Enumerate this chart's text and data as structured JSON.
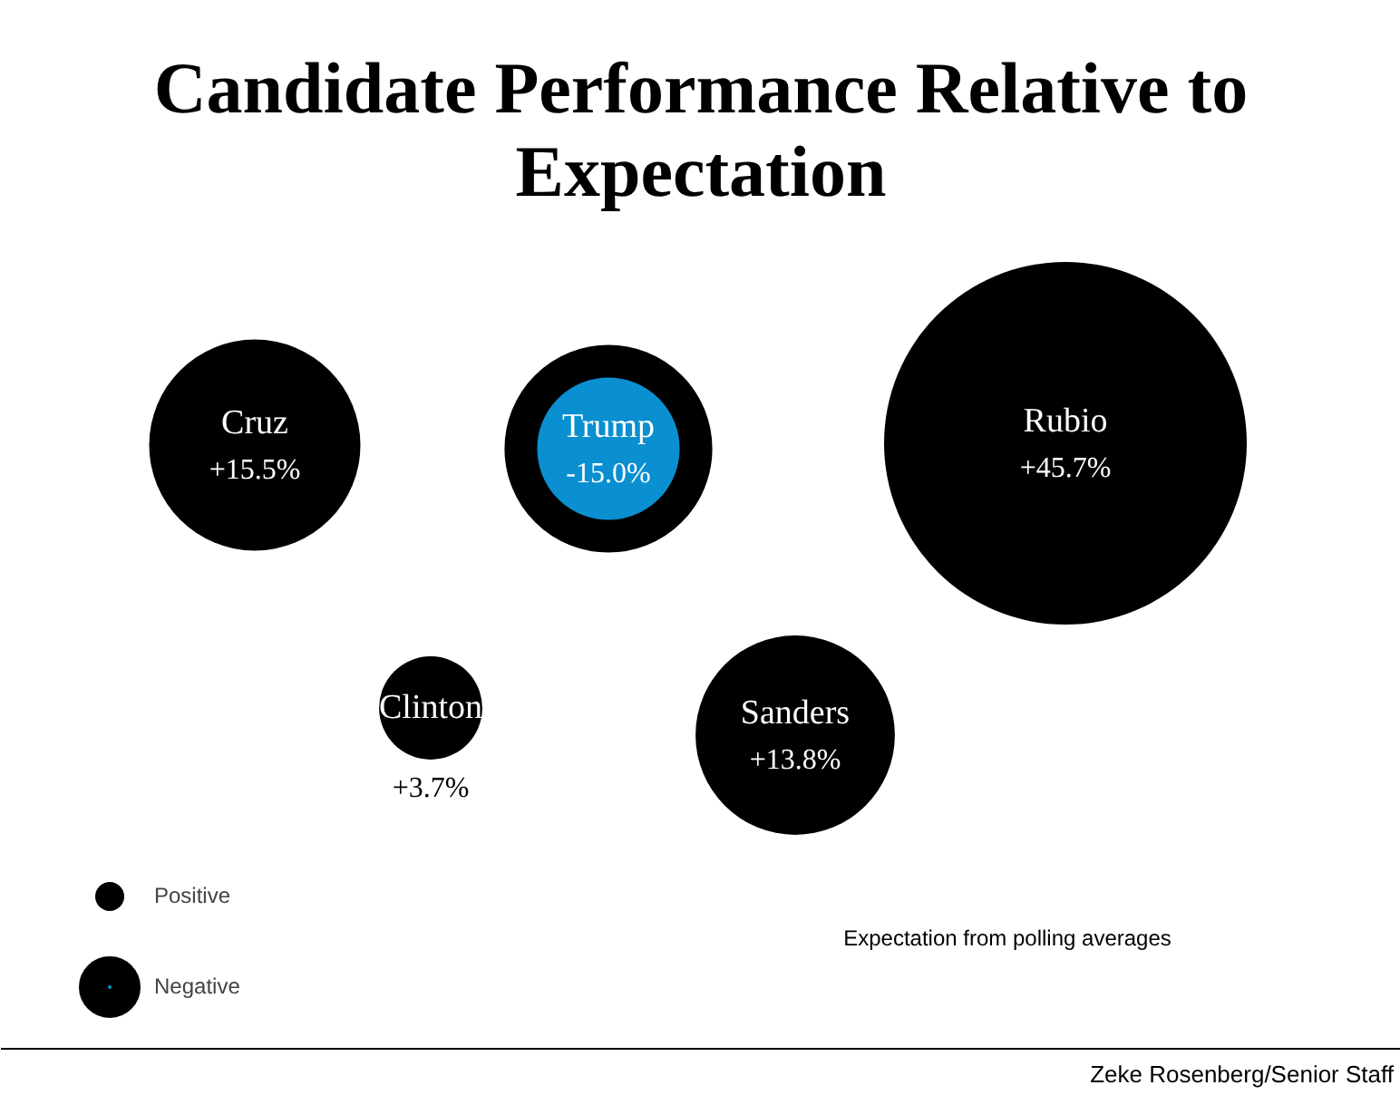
{
  "chart_data": {
    "type": "other",
    "title": "Candidate Performance Relative to Expectation",
    "categories": [
      "Cruz",
      "Trump",
      "Rubio",
      "Clinton",
      "Sanders"
    ],
    "series": [
      {
        "name": "Positive",
        "color": "#000000",
        "values": [
          15.5,
          null,
          45.7,
          3.7,
          13.8
        ],
        "value_labels": [
          "+15.5%",
          null,
          "+45.7%",
          "+3.7%",
          "+13.8%"
        ]
      },
      {
        "name": "Negative",
        "color": "#0a8fd0",
        "values": [
          null,
          -15.0,
          null,
          null,
          null
        ],
        "value_labels": [
          null,
          "-15.0%",
          null,
          null,
          null
        ]
      }
    ],
    "legend": "bottom left",
    "annotations": [
      "Expectation from polling averages",
      "Zeke Rosenberg/Senior Staff"
    ]
  }
}
